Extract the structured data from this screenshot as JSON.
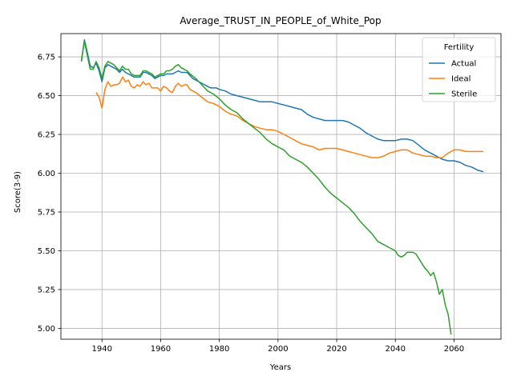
{
  "chart_data": {
    "type": "line",
    "title": "Average_TRUST_IN_PEOPLE_of_White_Pop",
    "xlabel": "Years",
    "ylabel": "Score(3-9)",
    "xlim": [
      1926,
      2076
    ],
    "ylim": [
      4.93,
      6.9
    ],
    "xticks": [
      1940,
      1960,
      1980,
      2000,
      2020,
      2040,
      2060
    ],
    "yticks": [
      5.0,
      5.25,
      5.5,
      5.75,
      6.0,
      6.25,
      6.5,
      6.75
    ],
    "ytick_labels": [
      "5.00",
      "5.25",
      "5.50",
      "5.75",
      "6.00",
      "6.25",
      "6.50",
      "6.75"
    ],
    "grid": true,
    "legend": {
      "title": "Fertility",
      "placement": "top-right"
    },
    "series": [
      {
        "name": "Actual",
        "color": "#1f77b4",
        "points": [
          [
            1933,
            6.72
          ],
          [
            1934,
            6.86
          ],
          [
            1935,
            6.78
          ],
          [
            1936,
            6.69
          ],
          [
            1937,
            6.68
          ],
          [
            1938,
            6.71
          ],
          [
            1939,
            6.66
          ],
          [
            1940,
            6.59
          ],
          [
            1941,
            6.68
          ],
          [
            1942,
            6.7
          ],
          [
            1943,
            6.69
          ],
          [
            1944,
            6.68
          ],
          [
            1945,
            6.67
          ],
          [
            1946,
            6.65
          ],
          [
            1947,
            6.67
          ],
          [
            1948,
            6.65
          ],
          [
            1949,
            6.64
          ],
          [
            1950,
            6.63
          ],
          [
            1951,
            6.62
          ],
          [
            1952,
            6.62
          ],
          [
            1953,
            6.62
          ],
          [
            1954,
            6.65
          ],
          [
            1955,
            6.65
          ],
          [
            1956,
            6.64
          ],
          [
            1957,
            6.63
          ],
          [
            1958,
            6.61
          ],
          [
            1959,
            6.62
          ],
          [
            1960,
            6.63
          ],
          [
            1961,
            6.63
          ],
          [
            1962,
            6.64
          ],
          [
            1963,
            6.64
          ],
          [
            1964,
            6.64
          ],
          [
            1965,
            6.65
          ],
          [
            1966,
            6.66
          ],
          [
            1967,
            6.65
          ],
          [
            1968,
            6.65
          ],
          [
            1969,
            6.65
          ],
          [
            1970,
            6.63
          ],
          [
            1971,
            6.61
          ],
          [
            1972,
            6.6
          ],
          [
            1973,
            6.59
          ],
          [
            1974,
            6.58
          ],
          [
            1975,
            6.57
          ],
          [
            1976,
            6.56
          ],
          [
            1977,
            6.55
          ],
          [
            1978,
            6.55
          ],
          [
            1979,
            6.55
          ],
          [
            1980,
            6.54
          ],
          [
            1982,
            6.53
          ],
          [
            1984,
            6.51
          ],
          [
            1986,
            6.5
          ],
          [
            1988,
            6.49
          ],
          [
            1990,
            6.48
          ],
          [
            1992,
            6.47
          ],
          [
            1994,
            6.46
          ],
          [
            1996,
            6.46
          ],
          [
            1998,
            6.46
          ],
          [
            2000,
            6.45
          ],
          [
            2002,
            6.44
          ],
          [
            2004,
            6.43
          ],
          [
            2006,
            6.42
          ],
          [
            2008,
            6.41
          ],
          [
            2010,
            6.38
          ],
          [
            2012,
            6.36
          ],
          [
            2014,
            6.35
          ],
          [
            2016,
            6.34
          ],
          [
            2018,
            6.34
          ],
          [
            2020,
            6.34
          ],
          [
            2022,
            6.34
          ],
          [
            2024,
            6.33
          ],
          [
            2026,
            6.31
          ],
          [
            2028,
            6.29
          ],
          [
            2030,
            6.26
          ],
          [
            2032,
            6.24
          ],
          [
            2034,
            6.22
          ],
          [
            2036,
            6.21
          ],
          [
            2038,
            6.21
          ],
          [
            2040,
            6.21
          ],
          [
            2042,
            6.22
          ],
          [
            2044,
            6.22
          ],
          [
            2046,
            6.21
          ],
          [
            2048,
            6.18
          ],
          [
            2050,
            6.15
          ],
          [
            2052,
            6.13
          ],
          [
            2054,
            6.11
          ],
          [
            2056,
            6.09
          ],
          [
            2058,
            6.08
          ],
          [
            2060,
            6.08
          ],
          [
            2062,
            6.07
          ],
          [
            2064,
            6.05
          ],
          [
            2066,
            6.04
          ],
          [
            2068,
            6.02
          ],
          [
            2070,
            6.01
          ]
        ]
      },
      {
        "name": "Ideal",
        "color": "#ff7f0e",
        "points": [
          [
            1938,
            6.52
          ],
          [
            1939,
            6.49
          ],
          [
            1940,
            6.42
          ],
          [
            1941,
            6.54
          ],
          [
            1942,
            6.59
          ],
          [
            1943,
            6.56
          ],
          [
            1944,
            6.57
          ],
          [
            1945,
            6.57
          ],
          [
            1946,
            6.58
          ],
          [
            1947,
            6.62
          ],
          [
            1948,
            6.59
          ],
          [
            1949,
            6.6
          ],
          [
            1950,
            6.56
          ],
          [
            1951,
            6.55
          ],
          [
            1952,
            6.57
          ],
          [
            1953,
            6.56
          ],
          [
            1954,
            6.59
          ],
          [
            1955,
            6.57
          ],
          [
            1956,
            6.58
          ],
          [
            1957,
            6.55
          ],
          [
            1958,
            6.55
          ],
          [
            1959,
            6.55
          ],
          [
            1960,
            6.53
          ],
          [
            1961,
            6.56
          ],
          [
            1962,
            6.55
          ],
          [
            1963,
            6.53
          ],
          [
            1964,
            6.52
          ],
          [
            1965,
            6.56
          ],
          [
            1966,
            6.58
          ],
          [
            1967,
            6.56
          ],
          [
            1968,
            6.57
          ],
          [
            1969,
            6.57
          ],
          [
            1970,
            6.54
          ],
          [
            1972,
            6.52
          ],
          [
            1974,
            6.49
          ],
          [
            1976,
            6.46
          ],
          [
            1978,
            6.45
          ],
          [
            1980,
            6.43
          ],
          [
            1982,
            6.4
          ],
          [
            1984,
            6.38
          ],
          [
            1986,
            6.37
          ],
          [
            1988,
            6.34
          ],
          [
            1990,
            6.32
          ],
          [
            1992,
            6.3
          ],
          [
            1994,
            6.29
          ],
          [
            1996,
            6.28
          ],
          [
            1998,
            6.28
          ],
          [
            2000,
            6.27
          ],
          [
            2002,
            6.25
          ],
          [
            2004,
            6.23
          ],
          [
            2006,
            6.21
          ],
          [
            2008,
            6.19
          ],
          [
            2010,
            6.18
          ],
          [
            2012,
            6.17
          ],
          [
            2014,
            6.15
          ],
          [
            2016,
            6.16
          ],
          [
            2018,
            6.16
          ],
          [
            2020,
            6.16
          ],
          [
            2022,
            6.15
          ],
          [
            2024,
            6.14
          ],
          [
            2026,
            6.13
          ],
          [
            2028,
            6.12
          ],
          [
            2030,
            6.11
          ],
          [
            2032,
            6.1
          ],
          [
            2034,
            6.1
          ],
          [
            2036,
            6.11
          ],
          [
            2038,
            6.13
          ],
          [
            2040,
            6.14
          ],
          [
            2042,
            6.15
          ],
          [
            2044,
            6.15
          ],
          [
            2046,
            6.13
          ],
          [
            2048,
            6.12
          ],
          [
            2050,
            6.11
          ],
          [
            2052,
            6.11
          ],
          [
            2054,
            6.1
          ],
          [
            2056,
            6.1
          ],
          [
            2058,
            6.13
          ],
          [
            2060,
            6.15
          ],
          [
            2062,
            6.15
          ],
          [
            2064,
            6.14
          ],
          [
            2066,
            6.14
          ],
          [
            2068,
            6.14
          ],
          [
            2070,
            6.14
          ]
        ]
      },
      {
        "name": "Sterile",
        "color": "#2ca02c",
        "points": [
          [
            1933,
            6.73
          ],
          [
            1934,
            6.85
          ],
          [
            1935,
            6.76
          ],
          [
            1936,
            6.67
          ],
          [
            1937,
            6.67
          ],
          [
            1938,
            6.72
          ],
          [
            1939,
            6.68
          ],
          [
            1940,
            6.61
          ],
          [
            1941,
            6.69
          ],
          [
            1942,
            6.72
          ],
          [
            1943,
            6.71
          ],
          [
            1944,
            6.7
          ],
          [
            1945,
            6.68
          ],
          [
            1946,
            6.66
          ],
          [
            1947,
            6.69
          ],
          [
            1948,
            6.67
          ],
          [
            1949,
            6.67
          ],
          [
            1950,
            6.64
          ],
          [
            1951,
            6.63
          ],
          [
            1952,
            6.63
          ],
          [
            1953,
            6.63
          ],
          [
            1954,
            6.66
          ],
          [
            1955,
            6.66
          ],
          [
            1956,
            6.65
          ],
          [
            1957,
            6.64
          ],
          [
            1958,
            6.62
          ],
          [
            1959,
            6.63
          ],
          [
            1960,
            6.64
          ],
          [
            1961,
            6.64
          ],
          [
            1962,
            6.66
          ],
          [
            1963,
            6.66
          ],
          [
            1964,
            6.67
          ],
          [
            1965,
            6.69
          ],
          [
            1966,
            6.7
          ],
          [
            1967,
            6.68
          ],
          [
            1968,
            6.67
          ],
          [
            1969,
            6.66
          ],
          [
            1970,
            6.64
          ],
          [
            1972,
            6.61
          ],
          [
            1974,
            6.57
          ],
          [
            1976,
            6.53
          ],
          [
            1978,
            6.51
          ],
          [
            1980,
            6.48
          ],
          [
            1982,
            6.44
          ],
          [
            1984,
            6.41
          ],
          [
            1986,
            6.39
          ],
          [
            1988,
            6.35
          ],
          [
            1990,
            6.32
          ],
          [
            1992,
            6.29
          ],
          [
            1994,
            6.26
          ],
          [
            1996,
            6.22
          ],
          [
            1998,
            6.19
          ],
          [
            2000,
            6.17
          ],
          [
            2002,
            6.15
          ],
          [
            2004,
            6.11
          ],
          [
            2006,
            6.09
          ],
          [
            2008,
            6.07
          ],
          [
            2010,
            6.04
          ],
          [
            2012,
            6.0
          ],
          [
            2014,
            5.96
          ],
          [
            2016,
            5.91
          ],
          [
            2018,
            5.87
          ],
          [
            2020,
            5.84
          ],
          [
            2022,
            5.81
          ],
          [
            2024,
            5.78
          ],
          [
            2026,
            5.74
          ],
          [
            2028,
            5.69
          ],
          [
            2030,
            5.65
          ],
          [
            2032,
            5.61
          ],
          [
            2034,
            5.56
          ],
          [
            2036,
            5.54
          ],
          [
            2038,
            5.52
          ],
          [
            2040,
            5.5
          ],
          [
            2041,
            5.47
          ],
          [
            2042,
            5.46
          ],
          [
            2043,
            5.47
          ],
          [
            2044,
            5.49
          ],
          [
            2045,
            5.49
          ],
          [
            2046,
            5.49
          ],
          [
            2047,
            5.48
          ],
          [
            2048,
            5.45
          ],
          [
            2049,
            5.42
          ],
          [
            2050,
            5.39
          ],
          [
            2051,
            5.37
          ],
          [
            2052,
            5.34
          ],
          [
            2053,
            5.36
          ],
          [
            2054,
            5.3
          ],
          [
            2055,
            5.22
          ],
          [
            2056,
            5.25
          ],
          [
            2057,
            5.15
          ],
          [
            2058,
            5.09
          ],
          [
            2059,
            4.96
          ]
        ]
      }
    ]
  }
}
